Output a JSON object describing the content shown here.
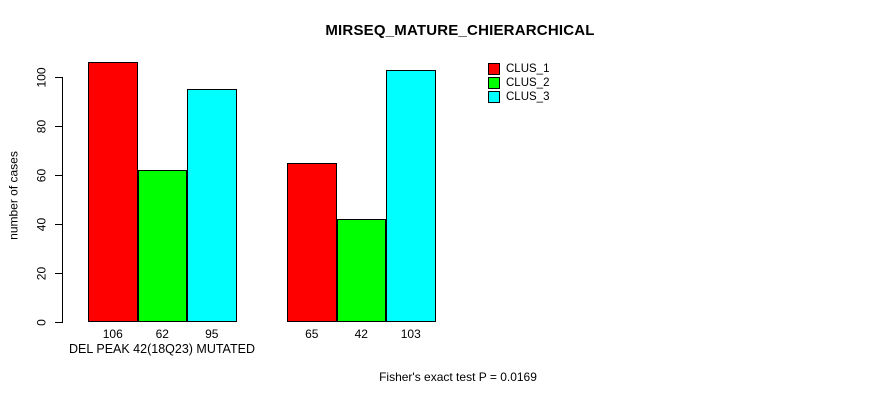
{
  "title": "MIRSEQ_MATURE_CHIERARCHICAL",
  "colors": {
    "clus_1": "#FF0000",
    "clus_2": "#00FF00",
    "clus_3": "#00FFFF",
    "axis": "#000000",
    "background": "#FFFFFF"
  },
  "chart_data": {
    "type": "bar",
    "title": "MIRSEQ_MATURE_CHIERARCHICAL",
    "xlabel": "DEL PEAK 42(18Q23) MUTATED",
    "ylabel": "number of cases",
    "ylim": [
      0,
      106
    ],
    "yticks": [
      0,
      20,
      40,
      60,
      80,
      100
    ],
    "categories": [
      "DEL PEAK 42(18Q23) MUTATED",
      ""
    ],
    "series": [
      {
        "name": "CLUS_1",
        "color": "#FF0000",
        "values": [
          106,
          65
        ]
      },
      {
        "name": "CLUS_2",
        "color": "#00FF00",
        "values": [
          62,
          42
        ]
      },
      {
        "name": "CLUS_3",
        "color": "#00FFFF",
        "values": [
          95,
          103
        ]
      }
    ],
    "bar_value_labels": [
      [
        106,
        62,
        95
      ],
      [
        65,
        42,
        103
      ]
    ],
    "legend_entries": [
      "CLUS_1",
      "CLUS_2",
      "CLUS_3"
    ],
    "legend_position": "top-right",
    "grid": false
  },
  "annotations": {
    "stat_text": "Fisher's exact test P = 0.0169"
  }
}
